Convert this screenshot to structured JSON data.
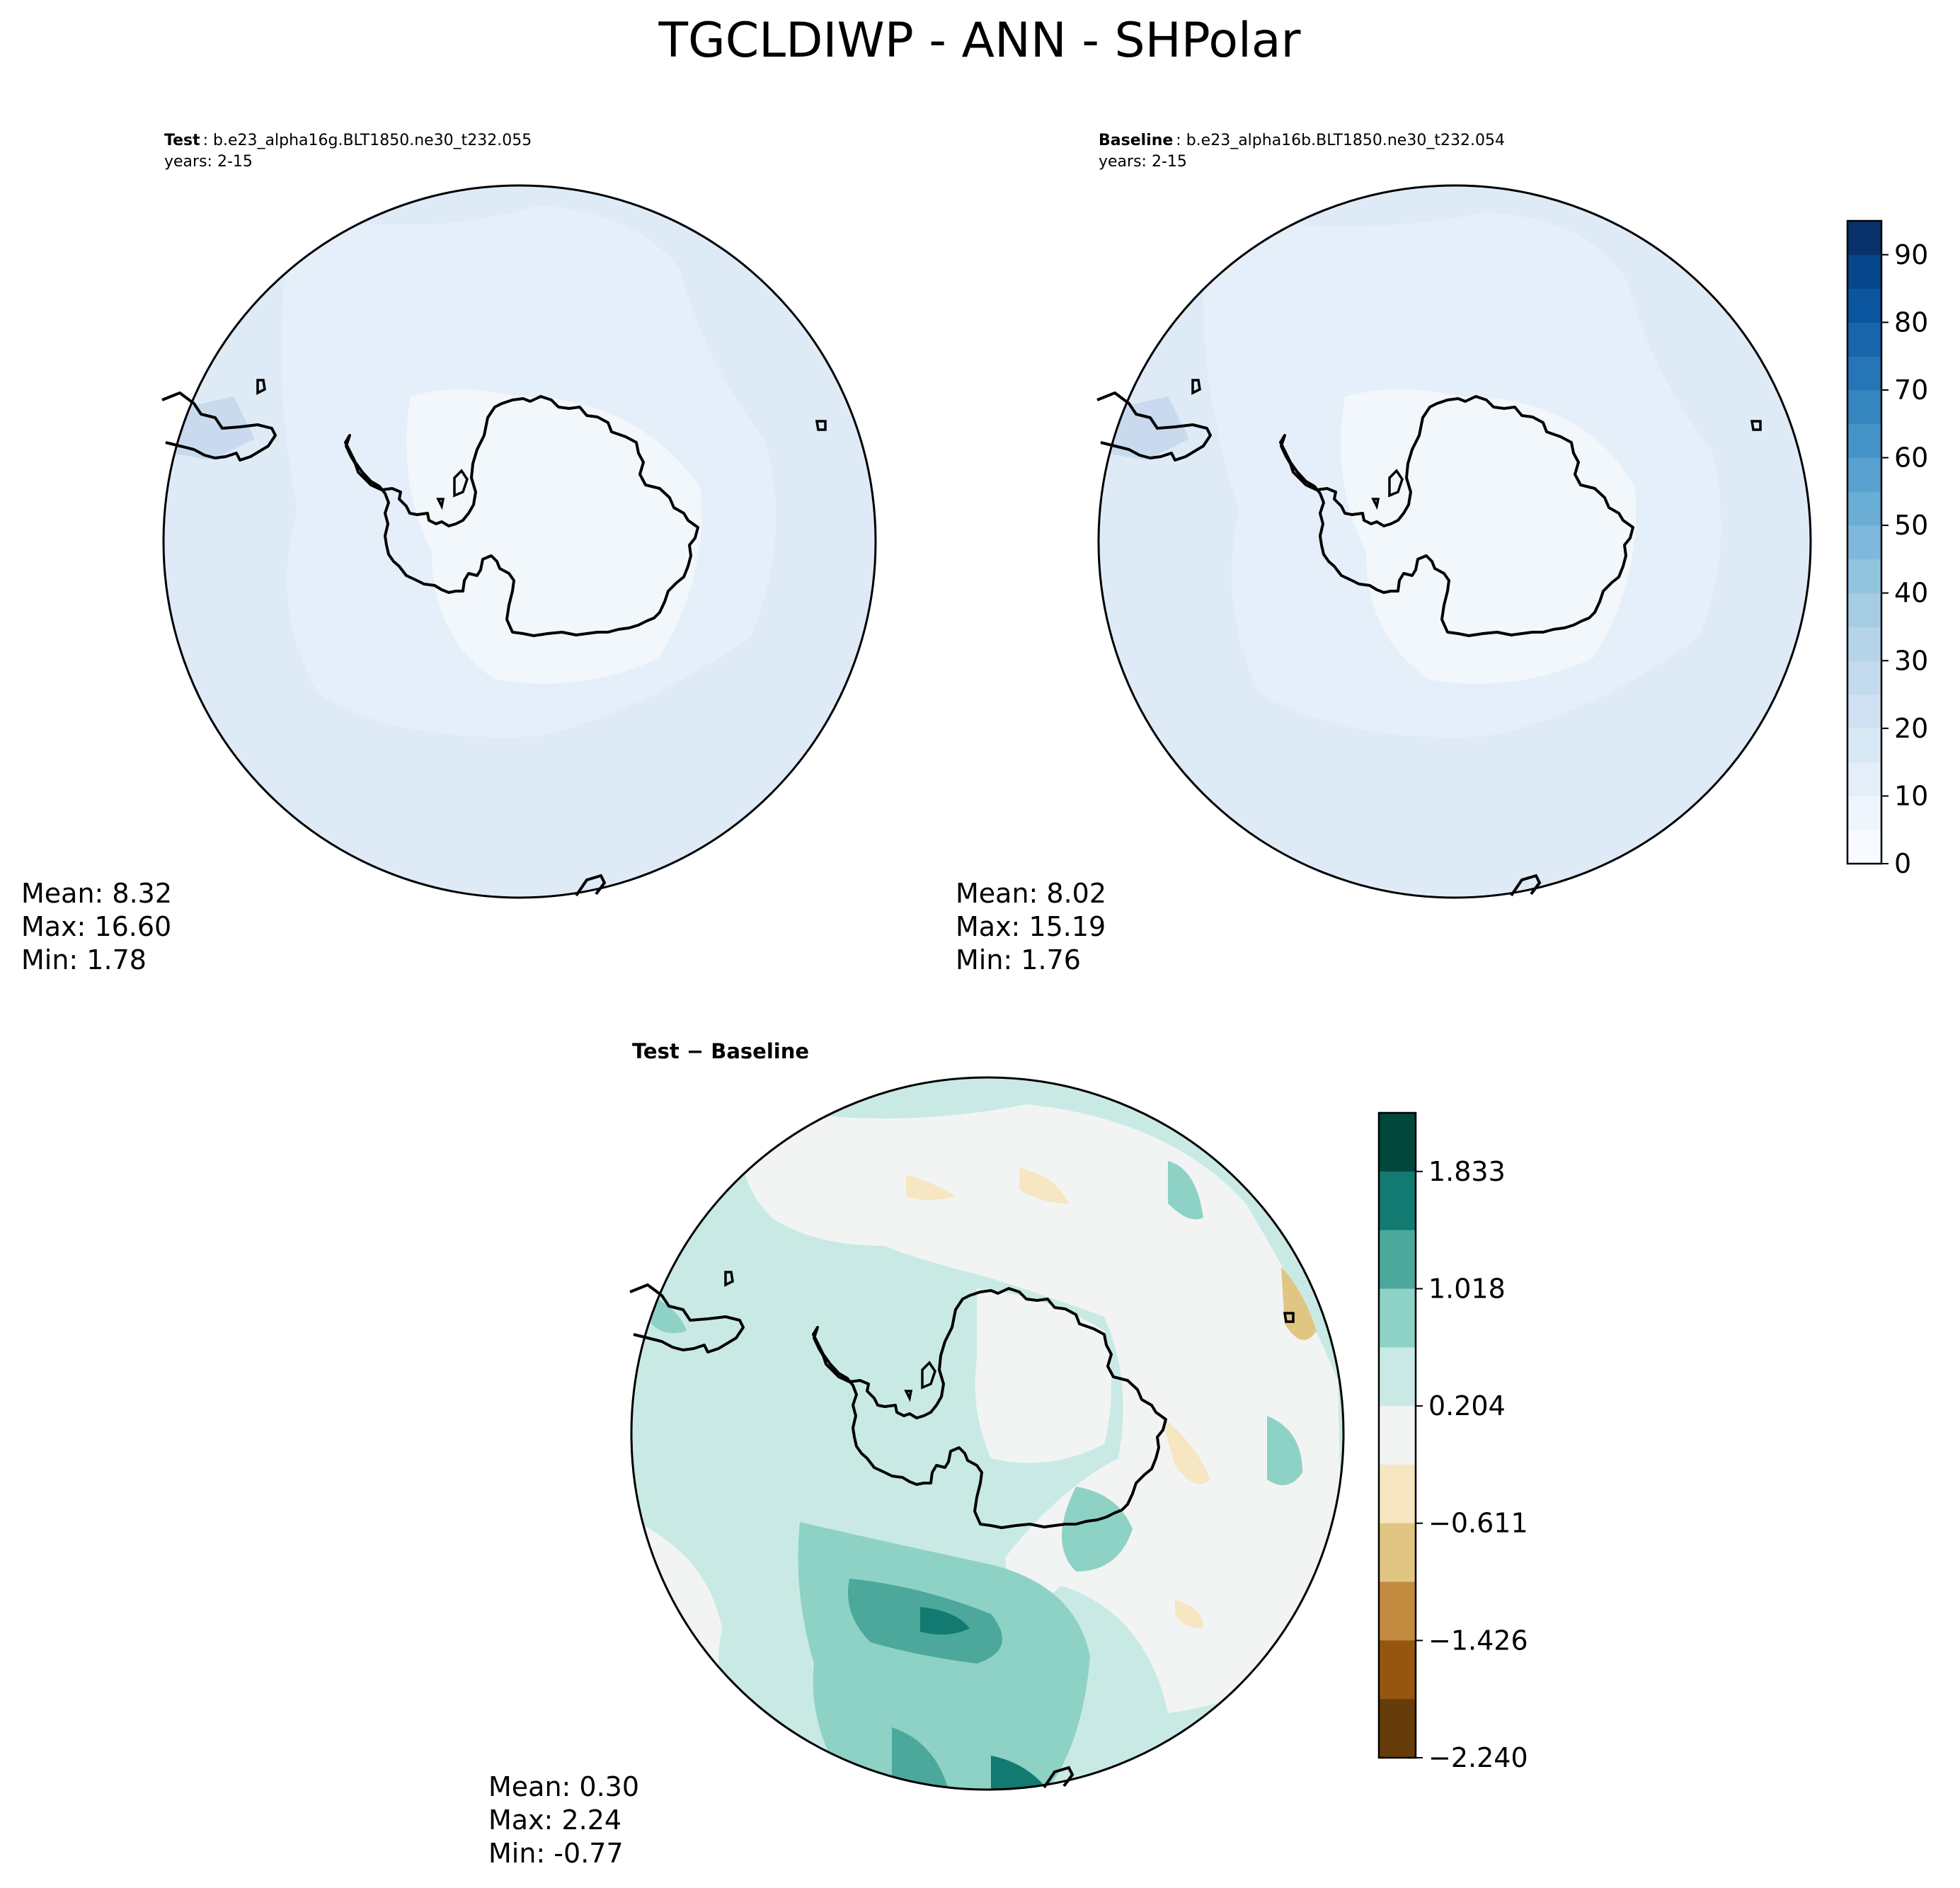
{
  "figure": {
    "title": "TGCLDIWP - ANN - SHPolar"
  },
  "panels": {
    "test": {
      "label": "Test",
      "case": ": b.e23_alpha16g.BLT1850.ne30_t232.055",
      "years": "years: 2-15",
      "stats": {
        "mean": "Mean:  8.32",
        "max": "Max: 16.60",
        "min": "Min:  1.78"
      }
    },
    "baseline": {
      "label": "Baseline",
      "case": ": b.e23_alpha16b.BLT1850.ne30_t232.054",
      "years": "years: 2-15",
      "stats": {
        "mean": "Mean:  8.02",
        "max": "Max: 15.19",
        "min": "Min:  1.76"
      }
    },
    "diff": {
      "title": "Test − Baseline",
      "stats": {
        "mean": "Mean:  0.30",
        "max": "Max:  2.24",
        "min": "Min: -0.77"
      }
    }
  },
  "colorbars": {
    "main": {
      "levels": 19,
      "range": [
        0,
        95
      ],
      "ticks": [
        "0",
        "10",
        "20",
        "30",
        "40",
        "50",
        "60",
        "70",
        "80",
        "90"
      ],
      "colors": [
        "#f7fbff",
        "#eef5fc",
        "#e3eef9",
        "#d9e8f5",
        "#cfe1f2",
        "#c4daee",
        "#b5d4e9",
        "#a5cce3",
        "#93c4df",
        "#7fb8da",
        "#6aaed6",
        "#58a1cf",
        "#4694c7",
        "#3585bf",
        "#2575b7",
        "#1865ac",
        "#0b559f",
        "#08468b",
        "#08306b"
      ]
    },
    "diff": {
      "levels": 11,
      "ticks": [
        "1.833",
        "1.018",
        "0.204",
        "−0.611",
        "−1.426",
        "−2.240"
      ],
      "colors": [
        "#01473c",
        "#127a71",
        "#4ca89a",
        "#8ed2c5",
        "#c9eae4",
        "#f2f4f3",
        "#f6e6c1",
        "#e1c582",
        "#c28b40",
        "#955611",
        "#663c0a"
      ]
    }
  },
  "map_colors": {
    "ocean_low": "#deebf7",
    "ocean_mid": "#e5eff9",
    "continent": "#f2f7fc",
    "diff_neutral": "#f2f4f3",
    "diff_light": "#c9eae4",
    "diff_mid": "#8ed2c5",
    "diff_dark": "#4ca89a",
    "diff_darker": "#127a71",
    "diff_darkest": "#01473c",
    "diff_brown_light": "#f6e6c1",
    "diff_brown_mid": "#e1c582"
  }
}
